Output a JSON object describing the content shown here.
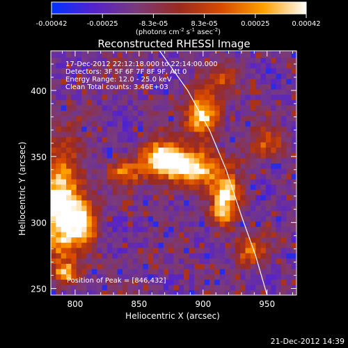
{
  "colorbar": {
    "ticks": [
      "-0.00042",
      "-0.00025",
      "-8.3e-05",
      "8.3e-05",
      "0.00025",
      "0.00042"
    ],
    "unit_main": "(photons cm",
    "unit_exp1": "-2",
    "unit_mid1": " s",
    "unit_exp2": "-1",
    "unit_mid2": " asec",
    "unit_exp3": "-2",
    "unit_end": ")",
    "colormap": [
      "#0033ff",
      "#5522cc",
      "#7a3a7a",
      "#9a2a20",
      "#d84a00",
      "#ffa000",
      "#ffffff"
    ]
  },
  "chart_data": {
    "type": "heatmap",
    "title": "Reconstructed RHESSI Image",
    "xlabel": "Heliocentric X (arcsec)",
    "ylabel": "Heliocentric Y (arcsec)",
    "xlim": [
      781,
      973
    ],
    "ylim": [
      245,
      430
    ],
    "x_ticks": [
      800,
      850,
      900,
      950
    ],
    "y_ticks": [
      250,
      300,
      350,
      400
    ],
    "annotations": [
      "17-Dec-2012 22:12:18.000 to 22:14:00.000",
      "Detectors: 3F 5F 6F 7F 8F 9F, Att 0",
      "Energy Range: 12.0 - 25.0 keV",
      "Clean    Total counts: 3.46E+03"
    ],
    "peak_label": "Position of Peak = [846,432]",
    "limb_curve": [
      [
        866,
        430
      ],
      [
        888,
        400
      ],
      [
        905,
        370
      ],
      [
        918,
        340
      ],
      [
        930,
        305
      ],
      [
        941,
        275
      ],
      [
        950,
        245
      ]
    ],
    "sources": [
      {
        "x": 900,
        "y": 382,
        "sx": 9,
        "sy": 12,
        "amp": 1.0
      },
      {
        "x": 887,
        "y": 342,
        "sx": 20,
        "sy": 9,
        "amp": 1.05
      },
      {
        "x": 868,
        "y": 351,
        "sx": 10,
        "sy": 8,
        "amp": 0.85
      },
      {
        "x": 919,
        "y": 323,
        "sx": 8,
        "sy": 8,
        "amp": 0.95
      },
      {
        "x": 915,
        "y": 306,
        "sx": 7,
        "sy": 7,
        "amp": 0.8
      },
      {
        "x": 790,
        "y": 312,
        "sx": 12,
        "sy": 28,
        "amp": 1.15
      },
      {
        "x": 808,
        "y": 300,
        "sx": 7,
        "sy": 10,
        "amp": 0.7
      },
      {
        "x": 838,
        "y": 338,
        "sx": 9,
        "sy": 6,
        "amp": 0.55
      },
      {
        "x": 937,
        "y": 278,
        "sx": 8,
        "sy": 7,
        "amp": 0.6
      },
      {
        "x": 793,
        "y": 262,
        "sx": 6,
        "sy": 5,
        "amp": 0.75
      },
      {
        "x": 950,
        "y": 360,
        "sx": 10,
        "sy": 8,
        "amp": 0.45
      },
      {
        "x": 918,
        "y": 408,
        "sx": 8,
        "sy": 8,
        "amp": 0.4
      }
    ]
  },
  "footer": {
    "timestamp": "21-Dec-2012 14:39"
  }
}
